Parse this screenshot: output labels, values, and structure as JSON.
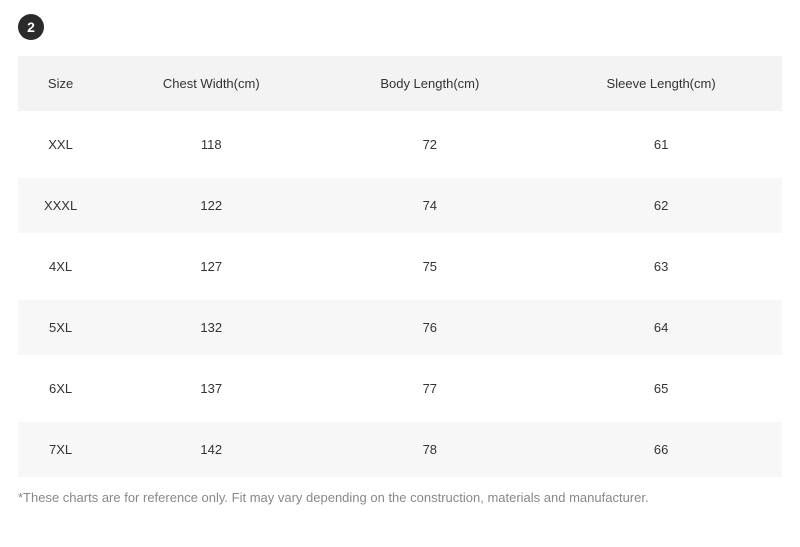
{
  "badge": "2",
  "table": {
    "columns": [
      "Size",
      "Chest Width(cm)",
      "Body Length(cm)",
      "Sleeve Length(cm)"
    ],
    "rows": [
      [
        "XXL",
        "118",
        "72",
        "61"
      ],
      [
        "XXXL",
        "122",
        "74",
        "62"
      ],
      [
        "4XL",
        "127",
        "75",
        "63"
      ],
      [
        "5XL",
        "132",
        "76",
        "64"
      ],
      [
        "6XL",
        "137",
        "77",
        "65"
      ],
      [
        "7XL",
        "142",
        "78",
        "66"
      ]
    ],
    "header_bg": "#f3f3f3",
    "row_alt_bg": "#f7f7f7",
    "text_color": "#333333",
    "font_size": 13
  },
  "footnote": "*These charts are for reference only. Fit may vary depending on the construction, materials and manufacturer."
}
